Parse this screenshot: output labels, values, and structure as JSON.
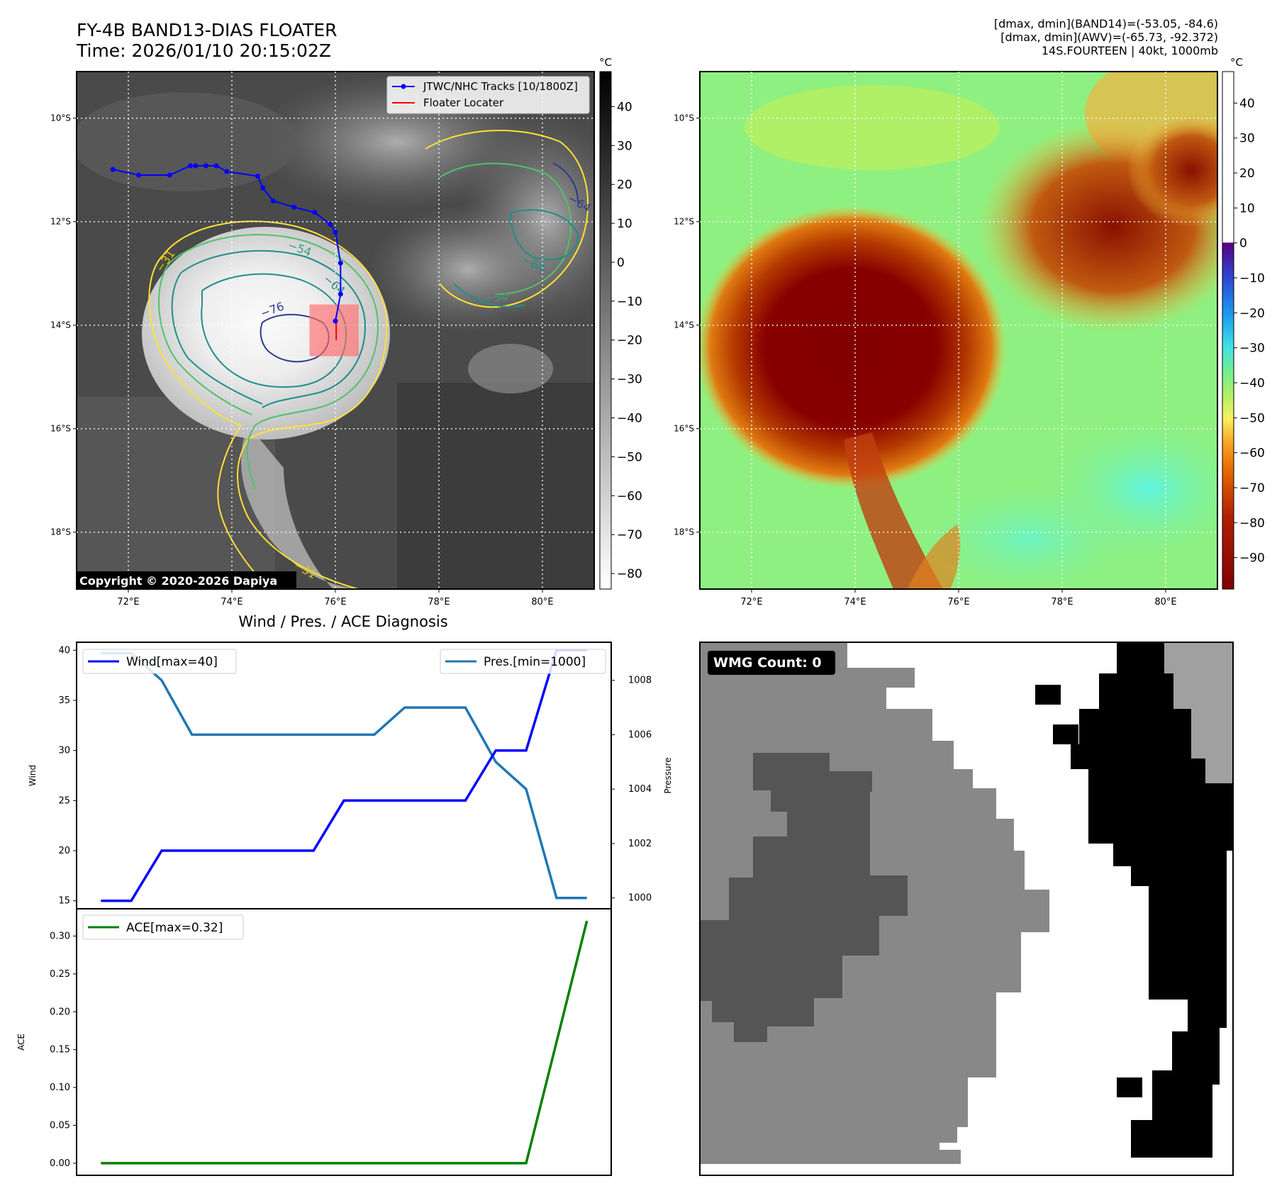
{
  "header": {
    "title_line1": "FY-4B BAND13-DIAS FLOATER",
    "title_line2": "Time: 2026/01/10 20:15:02Z",
    "info_line1": "[dmax, dmin](BAND14)=(-53.05, -84.6)",
    "info_line2": "[dmax, dmin](AWV)=(-65.73, -92.372)",
    "info_line3": "14S.FOURTEEN | 40kt, 1000mb"
  },
  "map_axes": {
    "lat_labels": [
      "10°S",
      "12°S",
      "14°S",
      "16°S",
      "18°S"
    ],
    "lon_labels": [
      "72°E",
      "74°E",
      "76°E",
      "78°E",
      "80°E"
    ],
    "lat_values": [
      -10,
      -12,
      -14,
      -16,
      -18
    ],
    "lon_values": [
      72,
      74,
      76,
      78,
      80
    ],
    "lon_range": [
      71,
      81
    ],
    "lat_range": [
      -9.1,
      -19.1
    ]
  },
  "ir_panel": {
    "legend_track": "JTWC/NHC Tracks [10/1800Z]",
    "legend_locator": "Floater Locater",
    "copyright": "Copyright © 2020-2026 Dapiya",
    "contour_labels": [
      "−31",
      "−54",
      "−64",
      "−76",
      "−64",
      "−54",
      "−64",
      "−31"
    ],
    "colorbar_unit": "°C",
    "colorbar_ticks": [
      "40",
      "30",
      "20",
      "10",
      "0",
      "−10",
      "−20",
      "−30",
      "−40",
      "−50",
      "−60",
      "−70",
      "−80"
    ],
    "colorbar_values": [
      40,
      30,
      20,
      10,
      0,
      -10,
      -20,
      -30,
      -40,
      -50,
      -60,
      -70,
      -80
    ],
    "colorbar_range": [
      49,
      -84
    ],
    "track": {
      "lon": [
        71.7,
        72.2,
        72.8,
        73.2,
        73.3,
        73.5,
        73.7,
        73.9,
        74.5,
        74.6,
        74.8,
        75.2,
        75.6,
        75.9,
        76.0,
        76.1,
        76.1,
        76.0
      ],
      "lat": [
        -10.99,
        -11.1,
        -11.1,
        -10.92,
        -10.92,
        -10.92,
        -10.92,
        -11.03,
        -11.12,
        -11.35,
        -11.6,
        -11.72,
        -11.82,
        -12.05,
        -12.2,
        -12.8,
        -13.4,
        -13.92
      ]
    },
    "locator": {
      "lon": [
        75.5,
        76.45
      ],
      "lat": [
        -13.6,
        -14.6
      ]
    },
    "colors": {
      "track": "#0000ff",
      "locator": "#ff0000",
      "c31": "#ffe135",
      "c54": "#4fc26c",
      "c64": "#1e8f8a",
      "c76": "#2e3a8c"
    }
  },
  "wv_panel": {
    "colorbar_unit": "°C",
    "colorbar_ticks": [
      "40",
      "30",
      "20",
      "10",
      "0",
      "−10",
      "−20",
      "−30",
      "−40",
      "−50",
      "−60",
      "−70",
      "−80",
      "−90"
    ],
    "colorbar_values": [
      40,
      30,
      20,
      10,
      0,
      -10,
      -20,
      -30,
      -40,
      -50,
      -60,
      -70,
      -80,
      -90
    ],
    "colorbar_range": [
      49,
      -99
    ]
  },
  "diagnosis": {
    "title": "Wind / Pres. / ACE Diagnosis",
    "wind_ylabel": "Wind",
    "pres_ylabel": "Pressure",
    "ace_ylabel": "ACE",
    "wind_legend": "Wind[max=40]",
    "pres_legend": "Pres.[min=1000]",
    "ace_legend": "ACE[max=0.32]",
    "wind_ticks": [
      "15",
      "20",
      "25",
      "30",
      "35",
      "40"
    ],
    "pres_ticks": [
      "1000",
      "1002",
      "1004",
      "1006",
      "1008"
    ],
    "ace_ticks": [
      "0.00",
      "0.05",
      "0.10",
      "0.15",
      "0.20",
      "0.25",
      "0.30"
    ]
  },
  "chart_data": [
    {
      "type": "line",
      "title": "Wind / Pres. / ACE Diagnosis",
      "x": [
        0,
        1,
        2,
        3,
        4,
        5,
        6,
        7,
        8,
        9,
        10,
        11,
        12,
        13,
        14,
        15,
        16
      ],
      "series": [
        {
          "name": "Wind[max=40]",
          "axis": "left",
          "color": "#0000ff",
          "values": [
            15,
            15,
            20,
            20,
            20,
            20,
            20,
            20,
            25,
            25,
            25,
            25,
            25,
            30,
            30,
            40,
            40
          ]
        },
        {
          "name": "Pres.[min=1000]",
          "axis": "right",
          "color": "#1f77b4",
          "values": [
            1009,
            1009,
            1008,
            1006,
            1006,
            1006,
            1006,
            1006,
            1006,
            1006,
            1007,
            1007,
            1007,
            1005,
            1004,
            1000,
            1000
          ]
        }
      ],
      "ylabel": "Wind",
      "ylim": [
        14.2,
        40.8
      ],
      "y2label": "Pressure",
      "y2lim": [
        999.6,
        1009.4
      ],
      "xlim": [
        -0.8,
        16.8
      ]
    },
    {
      "type": "line",
      "x": [
        0,
        1,
        2,
        3,
        4,
        5,
        6,
        7,
        8,
        9,
        10,
        11,
        12,
        13,
        14,
        15,
        16
      ],
      "series": [
        {
          "name": "ACE[max=0.32]",
          "color": "#008000",
          "values": [
            0,
            0,
            0,
            0,
            0,
            0,
            0,
            0,
            0,
            0,
            0,
            0,
            0,
            0,
            0,
            0.16,
            0.32
          ]
        }
      ],
      "ylabel": "ACE",
      "ylim": [
        -0.016,
        0.336
      ],
      "xlim": [
        -0.8,
        16.8
      ]
    }
  ],
  "wmg_panel": {
    "badge": "WMG Count: 0",
    "colors": {
      "dark": "#555555",
      "mid": "#888888",
      "light": "#a0a0a0",
      "white": "#ffffff",
      "black": "#000000"
    }
  }
}
